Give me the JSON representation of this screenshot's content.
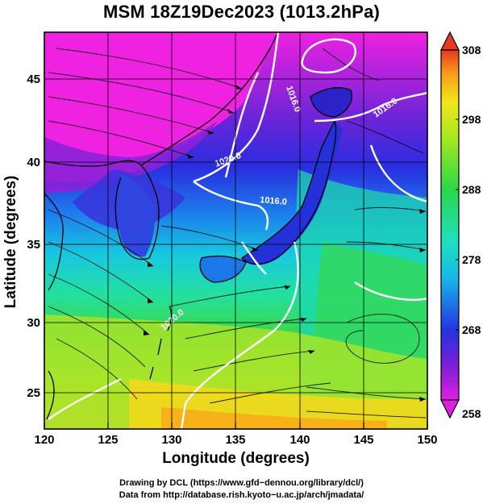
{
  "title": "MSM 18Z19Dec2023 (1013.2hPa)",
  "axes": {
    "xlabel": "Longitude (degrees)",
    "ylabel": "Latitude  (degrees)",
    "xlim": [
      120,
      150
    ],
    "ylim": [
      22.5,
      48
    ],
    "xticks": [
      "120",
      "125",
      "130",
      "135",
      "140",
      "145",
      "150"
    ],
    "yticks": [
      "25",
      "30",
      "35",
      "40",
      "45"
    ],
    "grid": true
  },
  "colorbar": {
    "min": 258,
    "max": 308,
    "ticks": [
      "308",
      "298",
      "288",
      "278",
      "268",
      "258"
    ],
    "extend": "both",
    "colors": [
      "#e020e0",
      "#7a1ed8",
      "#2234e0",
      "#18b8e8",
      "#1de0c0",
      "#28d848",
      "#a8e820",
      "#f0e818",
      "#f8a018",
      "#e83820"
    ]
  },
  "contours": [
    {
      "label": "1016.0"
    },
    {
      "label": "1016.0"
    },
    {
      "label": "1020.0"
    },
    {
      "label": "1016.0"
    },
    {
      "label": "1020.0"
    }
  ],
  "credits": {
    "line1": "Drawing by DCL (https://www.gfd−dennou.org/library/dcl/)",
    "line2": "Data from http://database.rish.kyoto−u.ac.jp/arch/jmadata/"
  },
  "colors": {
    "land_outline": "#000000",
    "contour": "#ffffff",
    "streamline": "#000000"
  }
}
